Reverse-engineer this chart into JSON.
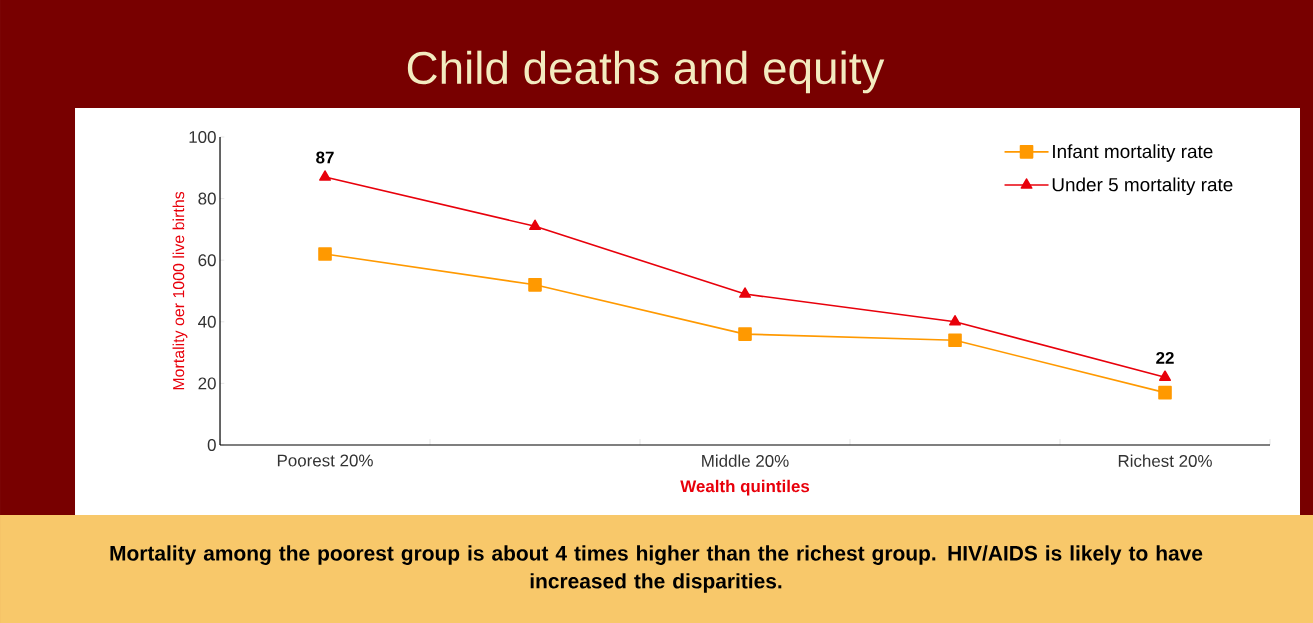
{
  "chart_data": {
    "type": "line",
    "title": "Child deaths and equity",
    "xlabel": "Wealth quintiles",
    "ylabel": "Mortality oer 1000 live births",
    "categories": [
      "Poorest 20%",
      null,
      "Middle 20%",
      null,
      "Richest 20%"
    ],
    "series": [
      {
        "name": "Infant mortality rate",
        "color": "#ff9900",
        "marker": "square",
        "values": [
          62,
          52,
          36,
          34,
          17
        ]
      },
      {
        "name": "Under 5 mortality rate",
        "color": "#e8000b",
        "marker": "triangle",
        "values": [
          87,
          71,
          49,
          40,
          22
        ],
        "value_labels": [
          "87",
          null,
          null,
          null,
          "22"
        ]
      }
    ],
    "ylim": [
      0,
      100
    ],
    "yticks": [
      0,
      20,
      40,
      60,
      80,
      100
    ],
    "legend": "top right",
    "line_style": "solid",
    "annotations": [
      "Mortality among the poorest group is about 4 times higher than the richest group. HIV/AIDS is likely to have increased the disparities."
    ]
  }
}
